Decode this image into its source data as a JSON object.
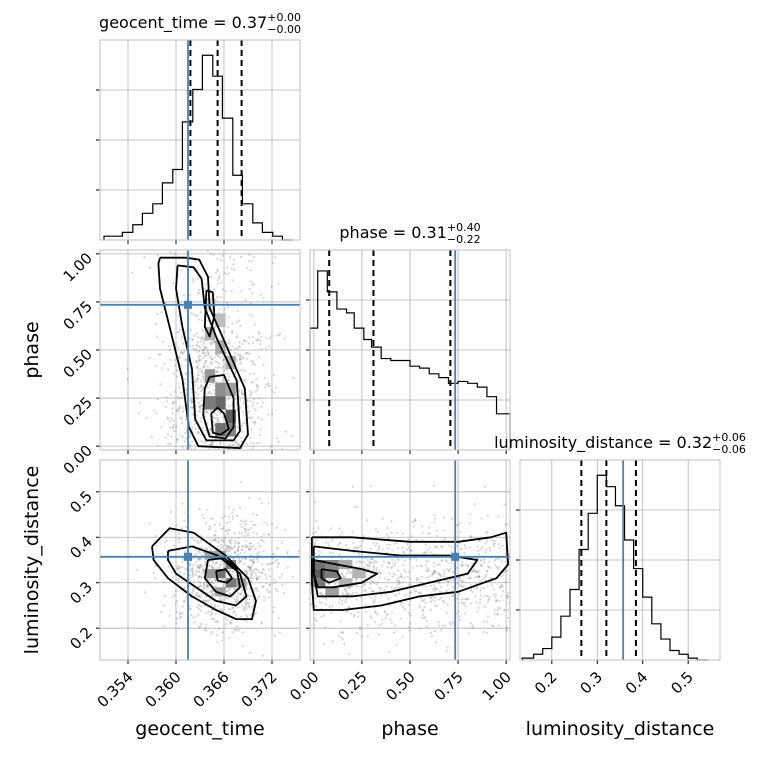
{
  "chart_data": {
    "type": "corner",
    "truth_color": "#4682b4",
    "parameters": [
      {
        "name": "geocent_time",
        "axis_label": "geocent_time",
        "range": [
          0.3505,
          0.3755
        ],
        "ticks": [
          0.354,
          0.36,
          0.366,
          0.372
        ],
        "tick_labels": [
          "0.354",
          "0.360",
          "0.366",
          "0.372"
        ],
        "truth": 0.3615,
        "quantiles": [
          0.3618,
          0.3652,
          0.3682
        ],
        "title": {
          "prefix": "geocent_time = 0.37",
          "plus": "+0.00",
          "minus": "−0.00"
        },
        "hist_edges": [
          0.351,
          0.3533,
          0.3546,
          0.3558,
          0.3571,
          0.3583,
          0.3596,
          0.3608,
          0.3621,
          0.3633,
          0.3646,
          0.3658,
          0.3671,
          0.3683,
          0.3696,
          0.3708,
          0.3721,
          0.3733,
          0.3746
        ],
        "hist_values": [
          0.02,
          0.04,
          0.08,
          0.14,
          0.19,
          0.3,
          0.37,
          0.62,
          0.79,
          0.97,
          0.86,
          0.64,
          0.34,
          0.19,
          0.09,
          0.04,
          0.02,
          0.0
        ]
      },
      {
        "name": "phase",
        "axis_label": "phase",
        "range": [
          -0.02,
          1.02
        ],
        "ticks": [
          0.0,
          0.25,
          0.5,
          0.75,
          1.0
        ],
        "tick_labels": [
          "0.00",
          "0.25",
          "0.50",
          "0.75",
          "1.00"
        ],
        "truth": 0.735,
        "quantiles": [
          0.08,
          0.31,
          0.71
        ],
        "title": {
          "prefix": "phase = 0.31",
          "plus": "+0.40",
          "minus": "−0.22"
        },
        "hist_edges": [
          -0.02,
          0.02,
          0.07,
          0.12,
          0.17,
          0.21,
          0.26,
          0.3,
          0.35,
          0.4,
          0.45,
          0.5,
          0.55,
          0.6,
          0.65,
          0.7,
          0.75,
          0.8,
          0.85,
          0.9,
          0.95,
          1.02
        ],
        "hist_values": [
          0.64,
          0.94,
          0.83,
          0.74,
          0.72,
          0.64,
          0.58,
          0.54,
          0.48,
          0.47,
          0.47,
          0.44,
          0.43,
          0.4,
          0.38,
          0.35,
          0.36,
          0.35,
          0.33,
          0.28,
          0.19
        ]
      },
      {
        "name": "luminosity_distance",
        "axis_label": "luminosity_distance",
        "range": [
          0.13,
          0.57
        ],
        "ticks": [
          0.2,
          0.3,
          0.4,
          0.5
        ],
        "tick_labels": [
          "0.2",
          "0.3",
          "0.4",
          "0.5"
        ],
        "truth": 0.357,
        "quantiles": [
          0.265,
          0.32,
          0.385
        ],
        "title": {
          "prefix": "luminosity_distance = 0.32",
          "plus": "+0.06",
          "minus": "−0.06"
        },
        "hist_edges": [
          0.135,
          0.16,
          0.18,
          0.2,
          0.22,
          0.24,
          0.26,
          0.28,
          0.3,
          0.32,
          0.34,
          0.36,
          0.38,
          0.4,
          0.42,
          0.44,
          0.46,
          0.48,
          0.5,
          0.52,
          0.545
        ],
        "hist_values": [
          0.01,
          0.03,
          0.06,
          0.12,
          0.23,
          0.37,
          0.58,
          0.77,
          0.97,
          0.91,
          0.81,
          0.63,
          0.48,
          0.33,
          0.19,
          0.11,
          0.05,
          0.03,
          0.01,
          0.0
        ]
      }
    ],
    "pair_plots": [
      {
        "x": "geocent_time",
        "y": "phase",
        "truth_marker": [
          0.3615,
          0.735
        ],
        "density_peak": [
          0.365,
          0.12
        ],
        "density_bins": [
          {
            "x": 0.3636,
            "y": 0.7,
            "w": 0.0013,
            "h": 0.07,
            "d": 0.2
          },
          {
            "x": 0.3649,
            "y": 0.62,
            "w": 0.0013,
            "h": 0.07,
            "d": 0.35
          },
          {
            "x": 0.3636,
            "y": 0.55,
            "w": 0.0013,
            "h": 0.07,
            "d": 0.4
          },
          {
            "x": 0.3649,
            "y": 0.48,
            "w": 0.0013,
            "h": 0.07,
            "d": 0.45
          },
          {
            "x": 0.3662,
            "y": 0.4,
            "w": 0.0013,
            "h": 0.07,
            "d": 0.4
          },
          {
            "x": 0.3636,
            "y": 0.33,
            "w": 0.0013,
            "h": 0.07,
            "d": 0.55
          },
          {
            "x": 0.3649,
            "y": 0.26,
            "w": 0.0013,
            "h": 0.07,
            "d": 0.6
          },
          {
            "x": 0.3662,
            "y": 0.26,
            "w": 0.0013,
            "h": 0.07,
            "d": 0.5
          },
          {
            "x": 0.3636,
            "y": 0.19,
            "w": 0.0013,
            "h": 0.07,
            "d": 0.7
          },
          {
            "x": 0.3649,
            "y": 0.19,
            "w": 0.0013,
            "h": 0.07,
            "d": 0.8
          },
          {
            "x": 0.3662,
            "y": 0.12,
            "w": 0.0013,
            "h": 0.07,
            "d": 0.85
          },
          {
            "x": 0.3649,
            "y": 0.05,
            "w": 0.0013,
            "h": 0.07,
            "d": 0.75
          },
          {
            "x": 0.3662,
            "y": 0.05,
            "w": 0.0013,
            "h": 0.07,
            "d": 0.65
          }
        ],
        "contours": [
          [
            [
              0.358,
              0.98
            ],
            [
              0.3612,
              0.98
            ],
            [
              0.3629,
              0.97
            ],
            [
              0.364,
              0.88
            ],
            [
              0.3642,
              0.72
            ],
            [
              0.366,
              0.55
            ],
            [
              0.3686,
              0.3
            ],
            [
              0.369,
              0.06
            ],
            [
              0.368,
              -0.01
            ],
            [
              0.3628,
              0.0
            ],
            [
              0.3616,
              0.1
            ],
            [
              0.3608,
              0.35
            ],
            [
              0.3592,
              0.62
            ],
            [
              0.358,
              0.82
            ],
            [
              0.3578,
              0.95
            ],
            [
              0.358,
              0.98
            ]
          ],
          [
            [
              0.3602,
              0.94
            ],
            [
              0.3622,
              0.93
            ],
            [
              0.3632,
              0.87
            ],
            [
              0.3636,
              0.72
            ],
            [
              0.3652,
              0.55
            ],
            [
              0.3676,
              0.34
            ],
            [
              0.368,
              0.08
            ],
            [
              0.3672,
              0.03
            ],
            [
              0.3638,
              0.03
            ],
            [
              0.3624,
              0.14
            ],
            [
              0.362,
              0.4
            ],
            [
              0.3608,
              0.62
            ],
            [
              0.36,
              0.82
            ],
            [
              0.3602,
              0.94
            ]
          ],
          [
            [
              0.3638,
              0.81
            ],
            [
              0.3646,
              0.8
            ],
            [
              0.3648,
              0.68
            ],
            [
              0.3642,
              0.57
            ],
            [
              0.3636,
              0.62
            ],
            [
              0.3638,
              0.81
            ]
          ],
          [
            [
              0.3642,
              0.36
            ],
            [
              0.366,
              0.37
            ],
            [
              0.3672,
              0.25
            ],
            [
              0.3672,
              0.1
            ],
            [
              0.3662,
              0.04
            ],
            [
              0.3642,
              0.05
            ],
            [
              0.3634,
              0.16
            ],
            [
              0.3636,
              0.3
            ],
            [
              0.3642,
              0.36
            ]
          ],
          [
            [
              0.3644,
              0.17
            ],
            [
              0.3652,
              0.2
            ],
            [
              0.366,
              0.17
            ],
            [
              0.3666,
              0.09
            ],
            [
              0.3656,
              0.06
            ],
            [
              0.3646,
              0.07
            ],
            [
              0.3644,
              0.17
            ]
          ]
        ]
      },
      {
        "x": "geocent_time",
        "y": "luminosity_distance",
        "truth_marker": [
          0.3615,
          0.357
        ],
        "density_peak": [
          0.366,
          0.32
        ],
        "density_bins": [
          {
            "x": 0.3636,
            "y": 0.35,
            "w": 0.0013,
            "h": 0.02,
            "d": 0.45
          },
          {
            "x": 0.3649,
            "y": 0.35,
            "w": 0.0013,
            "h": 0.02,
            "d": 0.5
          },
          {
            "x": 0.3662,
            "y": 0.33,
            "w": 0.0013,
            "h": 0.02,
            "d": 0.65
          },
          {
            "x": 0.3649,
            "y": 0.31,
            "w": 0.0013,
            "h": 0.02,
            "d": 0.75
          },
          {
            "x": 0.3662,
            "y": 0.29,
            "w": 0.0013,
            "h": 0.02,
            "d": 0.7
          },
          {
            "x": 0.3675,
            "y": 0.29,
            "w": 0.0013,
            "h": 0.02,
            "d": 0.5
          },
          {
            "x": 0.3636,
            "y": 0.31,
            "w": 0.0013,
            "h": 0.02,
            "d": 0.55
          },
          {
            "x": 0.3649,
            "y": 0.27,
            "w": 0.0013,
            "h": 0.02,
            "d": 0.5
          }
        ],
        "contours": [
          [
            [
              0.357,
              0.38
            ],
            [
              0.3592,
              0.42
            ],
            [
              0.3622,
              0.41
            ],
            [
              0.3662,
              0.36
            ],
            [
              0.369,
              0.31
            ],
            [
              0.37,
              0.26
            ],
            [
              0.3695,
              0.22
            ],
            [
              0.3675,
              0.22
            ],
            [
              0.365,
              0.24
            ],
            [
              0.362,
              0.27
            ],
            [
              0.359,
              0.31
            ],
            [
              0.3572,
              0.35
            ],
            [
              0.357,
              0.38
            ]
          ],
          [
            [
              0.359,
              0.37
            ],
            [
              0.362,
              0.38
            ],
            [
              0.3652,
              0.36
            ],
            [
              0.368,
              0.32
            ],
            [
              0.3688,
              0.27
            ],
            [
              0.3675,
              0.25
            ],
            [
              0.365,
              0.26
            ],
            [
              0.3625,
              0.29
            ],
            [
              0.36,
              0.32
            ],
            [
              0.359,
              0.35
            ],
            [
              0.359,
              0.37
            ]
          ],
          [
            [
              0.364,
              0.35
            ],
            [
              0.366,
              0.355
            ],
            [
              0.3676,
              0.33
            ],
            [
              0.368,
              0.29
            ],
            [
              0.3668,
              0.27
            ],
            [
              0.365,
              0.28
            ],
            [
              0.3636,
              0.31
            ],
            [
              0.364,
              0.35
            ]
          ],
          [
            [
              0.365,
              0.325
            ],
            [
              0.3662,
              0.33
            ],
            [
              0.367,
              0.31
            ],
            [
              0.3664,
              0.3
            ],
            [
              0.3652,
              0.305
            ],
            [
              0.365,
              0.325
            ]
          ]
        ]
      },
      {
        "x": "phase",
        "y": "luminosity_distance",
        "truth_marker": [
          0.735,
          0.357
        ],
        "density_peak": [
          0.05,
          0.31
        ],
        "density_bins": [
          {
            "x": -0.01,
            "y": 0.33,
            "w": 0.07,
            "h": 0.02,
            "d": 0.75
          },
          {
            "x": 0.06,
            "y": 0.33,
            "w": 0.07,
            "h": 0.02,
            "d": 0.65
          },
          {
            "x": -0.01,
            "y": 0.31,
            "w": 0.07,
            "h": 0.02,
            "d": 0.85
          },
          {
            "x": 0.06,
            "y": 0.31,
            "w": 0.07,
            "h": 0.02,
            "d": 0.7
          },
          {
            "x": -0.01,
            "y": 0.29,
            "w": 0.07,
            "h": 0.02,
            "d": 0.7
          },
          {
            "x": 0.13,
            "y": 0.33,
            "w": 0.07,
            "h": 0.02,
            "d": 0.45
          },
          {
            "x": 0.2,
            "y": 0.31,
            "w": 0.07,
            "h": 0.02,
            "d": 0.4
          },
          {
            "x": 0.06,
            "y": 0.27,
            "w": 0.07,
            "h": 0.02,
            "d": 0.5
          },
          {
            "x": 0.13,
            "y": 0.29,
            "w": 0.07,
            "h": 0.02,
            "d": 0.4
          }
        ],
        "contours": [
          [
            [
              -0.01,
              0.4
            ],
            [
              0.2,
              0.4
            ],
            [
              0.5,
              0.39
            ],
            [
              0.75,
              0.39
            ],
            [
              0.92,
              0.4
            ],
            [
              1.0,
              0.41
            ],
            [
              1.01,
              0.34
            ],
            [
              0.95,
              0.31
            ],
            [
              0.75,
              0.28
            ],
            [
              0.55,
              0.27
            ],
            [
              0.35,
              0.25
            ],
            [
              0.15,
              0.24
            ],
            [
              0.0,
              0.24
            ],
            [
              -0.01,
              0.3
            ],
            [
              -0.01,
              0.4
            ]
          ],
          [
            [
              0.0,
              0.38
            ],
            [
              0.2,
              0.37
            ],
            [
              0.45,
              0.36
            ],
            [
              0.7,
              0.36
            ],
            [
              0.85,
              0.35
            ],
            [
              0.8,
              0.32
            ],
            [
              0.6,
              0.3
            ],
            [
              0.4,
              0.28
            ],
            [
              0.2,
              0.27
            ],
            [
              0.02,
              0.27
            ],
            [
              0.0,
              0.32
            ],
            [
              0.0,
              0.38
            ]
          ],
          [
            [
              0.0,
              0.35
            ],
            [
              0.12,
              0.34
            ],
            [
              0.25,
              0.33
            ],
            [
              0.33,
              0.32
            ],
            [
              0.25,
              0.3
            ],
            [
              0.1,
              0.29
            ],
            [
              0.02,
              0.29
            ],
            [
              0.0,
              0.32
            ],
            [
              0.0,
              0.35
            ]
          ],
          [
            [
              0.04,
              0.33
            ],
            [
              0.12,
              0.325
            ],
            [
              0.14,
              0.31
            ],
            [
              0.08,
              0.3
            ],
            [
              0.04,
              0.31
            ],
            [
              0.04,
              0.33
            ]
          ]
        ]
      }
    ]
  }
}
